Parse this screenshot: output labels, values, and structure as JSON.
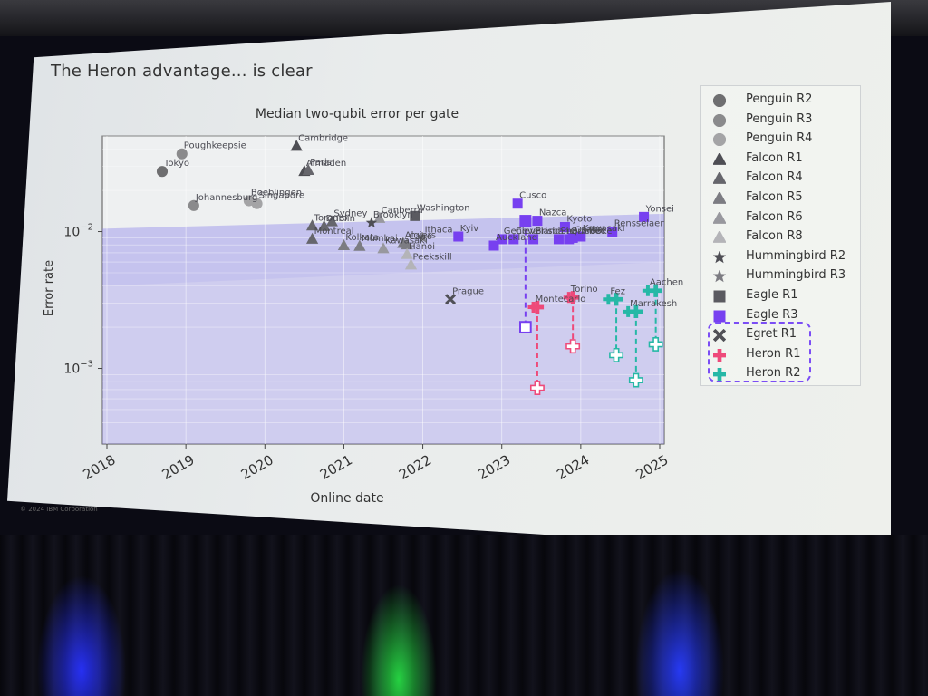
{
  "slide": {
    "title": "The Heron advantage... is clear",
    "copyright": "© 2024 IBM Corporation"
  },
  "chart_data": {
    "type": "scatter",
    "title": "Median two-qubit error per gate",
    "xlabel": "Online date",
    "ylabel": "Error rate",
    "yscale": "log",
    "xlim": [
      2018,
      2025.5
    ],
    "ylim": [
      0.00028,
      0.05
    ],
    "x_ticks": [
      "2018",
      "2019",
      "2020",
      "2021",
      "2022",
      "2023",
      "2024",
      "2025"
    ],
    "y_ticks": [
      {
        "value": 0.01,
        "label": "10^-2",
        "base": "10",
        "exp": "−2"
      },
      {
        "value": 0.001,
        "label": "10^-3",
        "base": "10",
        "exp": "−3"
      }
    ],
    "legend_position": "outside-right",
    "grid": true,
    "legend": [
      {
        "label": "Penguin R2",
        "marker": "circle",
        "color": "#6e6e70"
      },
      {
        "label": "Penguin R3",
        "marker": "circle",
        "color": "#8a8a8c"
      },
      {
        "label": "Penguin R4",
        "marker": "circle",
        "color": "#a4a4a6"
      },
      {
        "label": "Falcon R1",
        "marker": "triangle",
        "color": "#4e4e54"
      },
      {
        "label": "Falcon R4",
        "marker": "triangle",
        "color": "#66666c"
      },
      {
        "label": "Falcon R5",
        "marker": "triangle",
        "color": "#7c7c82"
      },
      {
        "label": "Falcon R6",
        "marker": "triangle",
        "color": "#98989e"
      },
      {
        "label": "Falcon R8",
        "marker": "triangle",
        "color": "#b4b4b8"
      },
      {
        "label": "Hummingbird R2",
        "marker": "star",
        "color": "#4e4e54"
      },
      {
        "label": "Hummingbird R3",
        "marker": "star",
        "color": "#7c7c82"
      },
      {
        "label": "Eagle R1",
        "marker": "square",
        "color": "#5a5a60"
      },
      {
        "label": "Eagle R3",
        "marker": "square",
        "color": "#7740f0"
      },
      {
        "label": "Egret R1",
        "marker": "x",
        "color": "#505056"
      },
      {
        "label": "Heron R1",
        "marker": "plus",
        "color": "#ee4a7a"
      },
      {
        "label": "Heron R2",
        "marker": "plus",
        "color": "#26b8a6"
      }
    ],
    "points": [
      {
        "label": "Tokyo",
        "series": "Penguin R2",
        "x": 2018.7,
        "y": 0.0275
      },
      {
        "label": "Poughkeepsie",
        "series": "Penguin R3",
        "x": 2018.95,
        "y": 0.037
      },
      {
        "label": "Johannesburg",
        "series": "Penguin R3",
        "x": 2019.1,
        "y": 0.0155
      },
      {
        "label": "Boeblingen",
        "series": "Penguin R4",
        "x": 2019.8,
        "y": 0.0168
      },
      {
        "label": "Singapore",
        "series": "Penguin R4",
        "x": 2019.9,
        "y": 0.016
      },
      {
        "label": "Cambridge",
        "series": "Falcon R1",
        "x": 2020.4,
        "y": 0.042
      },
      {
        "label": "Almaden",
        "series": "Falcon R1",
        "x": 2020.5,
        "y": 0.0275
      },
      {
        "label": "Paris",
        "series": "Falcon R4",
        "x": 2020.55,
        "y": 0.028
      },
      {
        "label": "Toronto",
        "series": "Falcon R4",
        "x": 2020.6,
        "y": 0.011
      },
      {
        "label": "Montreal",
        "series": "Falcon R4",
        "x": 2020.6,
        "y": 0.0088
      },
      {
        "label": "Dublin",
        "series": "Falcon R4",
        "x": 2020.75,
        "y": 0.0109
      },
      {
        "label": "Sydney",
        "series": "Falcon R4",
        "x": 2020.85,
        "y": 0.0118
      },
      {
        "label": "Kolkata",
        "series": "Falcon R5",
        "x": 2021.0,
        "y": 0.0079
      },
      {
        "label": "Mumbai",
        "series": "Falcon R5",
        "x": 2021.2,
        "y": 0.0078
      },
      {
        "label": "Kawasaki",
        "series": "Falcon R6",
        "x": 2021.5,
        "y": 0.0075
      },
      {
        "label": "Canberra",
        "series": "Falcon R6",
        "x": 2021.45,
        "y": 0.0125
      },
      {
        "label": "Brooklyn",
        "series": "Hummingbird R2",
        "x": 2021.35,
        "y": 0.0116
      },
      {
        "label": "Algiers",
        "series": "Falcon R5",
        "x": 2021.75,
        "y": 0.0082
      },
      {
        "label": "Cairo",
        "series": "Falcon R5",
        "x": 2021.8,
        "y": 0.008
      },
      {
        "label": "Hanoi",
        "series": "Falcon R8",
        "x": 2021.8,
        "y": 0.0068
      },
      {
        "label": "Peekskill",
        "series": "Falcon R8",
        "x": 2021.85,
        "y": 0.0057
      },
      {
        "label": "Washington",
        "series": "Eagle R1",
        "x": 2021.9,
        "y": 0.013
      },
      {
        "label": "Ithaca",
        "series": "Hummingbird R3",
        "x": 2022.0,
        "y": 0.009
      },
      {
        "label": "Prague",
        "series": "Egret R1",
        "x": 2022.35,
        "y": 0.0032
      },
      {
        "label": "Kyiv",
        "series": "Eagle R3",
        "x": 2022.45,
        "y": 0.0092
      },
      {
        "label": "Geneva",
        "series": "Eagle R3",
        "x": 2023.0,
        "y": 0.0088
      },
      {
        "label": "Auckland",
        "series": "Eagle R3",
        "x": 2022.9,
        "y": 0.0079
      },
      {
        "label": "Cleveland",
        "series": "Eagle R3",
        "x": 2023.15,
        "y": 0.0088
      },
      {
        "label": "Cusco",
        "series": "Eagle R3",
        "x": 2023.2,
        "y": 0.016
      },
      {
        "label": "Nazca",
        "series": "Eagle R3",
        "x": 2023.45,
        "y": 0.012
      },
      {
        "label": "Brisbane",
        "series": "Eagle R3",
        "x": 2023.4,
        "y": 0.0088
      },
      {
        "label": "Sherbrooke",
        "series": "Eagle R3",
        "x": 2023.72,
        "y": 0.0088
      },
      {
        "label": "Quebec",
        "series": "Eagle R3",
        "x": 2023.85,
        "y": 0.0088
      },
      {
        "label": "Kyoto",
        "series": "Eagle R3",
        "x": 2023.8,
        "y": 0.0108
      },
      {
        "label": "Osaka",
        "series": "Eagle R3",
        "x": 2023.9,
        "y": 0.009
      },
      {
        "label": "Kawasaki",
        "series": "Eagle R3",
        "x": 2024.0,
        "y": 0.0092
      },
      {
        "label": "Rensselaer",
        "series": "Eagle R3",
        "x": 2024.4,
        "y": 0.01
      },
      {
        "label": "Yonsei",
        "series": "Eagle R3",
        "x": 2024.8,
        "y": 0.0128
      },
      {
        "label": "Torino",
        "series": "Heron R1",
        "x": 2023.85,
        "y": 0.0033
      },
      {
        "label": "Montecarlo",
        "series": "Heron R1",
        "x": 2023.4,
        "y": 0.0028
      },
      {
        "label": "Fez",
        "series": "Heron R2",
        "x": 2024.35,
        "y": 0.0032
      },
      {
        "label": "Marrakesh",
        "series": "Heron R2",
        "x": 2024.6,
        "y": 0.0026
      },
      {
        "label": "Aachen",
        "series": "Heron R2",
        "x": 2024.85,
        "y": 0.0037
      }
    ],
    "layer_fidelity_pairs": [
      {
        "series": "Eagle R3",
        "x": 2023.3,
        "from": 0.012,
        "to": 0.002
      },
      {
        "series": "Heron R1",
        "x": 2023.45,
        "from": 0.0028,
        "to": 0.00072
      },
      {
        "series": "Heron R1",
        "x": 2023.9,
        "from": 0.0033,
        "to": 0.00145
      },
      {
        "series": "Heron R2",
        "x": 2024.45,
        "from": 0.0032,
        "to": 0.00125
      },
      {
        "series": "Heron R2",
        "x": 2024.7,
        "from": 0.0026,
        "to": 0.00082
      },
      {
        "series": "Heron R2",
        "x": 2024.95,
        "from": 0.0037,
        "to": 0.0015
      }
    ],
    "highlighted_legend": [
      "Egret R1",
      "Heron R1",
      "Heron R2"
    ]
  }
}
